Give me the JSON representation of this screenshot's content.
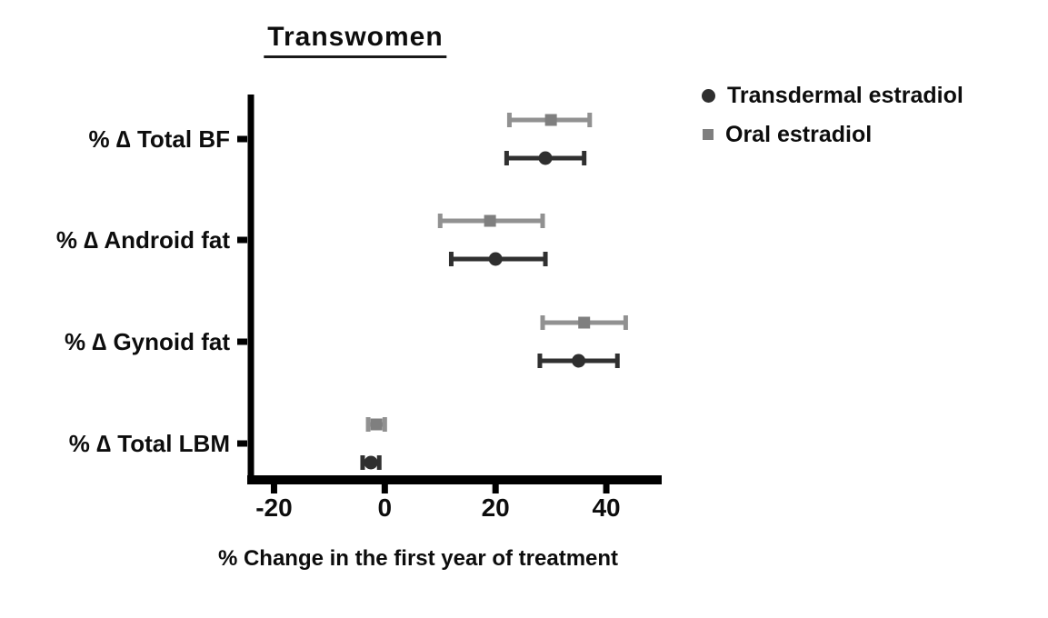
{
  "chart_data": {
    "type": "scatter",
    "subtype": "horizontal-dot-plot-with-error-bars",
    "title": "Transwomen",
    "xlabel": "% Change in the first year of treatment",
    "categories": [
      "% ∆ Total BF",
      "% ∆ Android fat",
      "% ∆ Gynoid fat",
      "% ∆ Total LBM"
    ],
    "x_ticks": [
      "-20",
      "0",
      "20",
      "40"
    ],
    "x_tick_values": [
      -20,
      0,
      20,
      40
    ],
    "xlim": [
      -25,
      50
    ],
    "grid": false,
    "legend_position": "top-right",
    "axis_color": "#000000",
    "series": [
      {
        "name": "Transdermal estradiol",
        "marker": "circle",
        "marker_color": "#2f2f2f",
        "line_color": "#303030",
        "means": [
          29,
          20,
          35,
          -2.5
        ],
        "ci": [
          [
            22,
            36
          ],
          [
            12,
            29
          ],
          [
            28,
            42
          ],
          [
            -4,
            -1
          ]
        ]
      },
      {
        "name": "Oral estradiol",
        "marker": "square",
        "marker_color": "#7f7f7f",
        "line_color": "#919191",
        "means": [
          30,
          19,
          36,
          -1.5
        ],
        "ci": [
          [
            22.5,
            37
          ],
          [
            10,
            28.5
          ],
          [
            28.5,
            43.5
          ],
          [
            -3,
            0
          ]
        ]
      }
    ]
  }
}
